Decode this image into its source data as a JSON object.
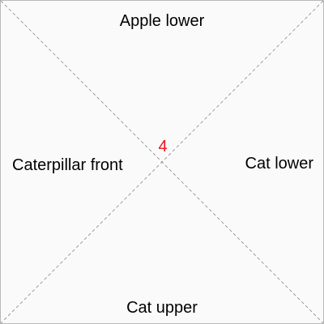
{
  "quadrants": {
    "top": "Apple lower",
    "left": "Caterpillar front",
    "right": "Cat lower",
    "bottom": "Cat upper"
  },
  "center_number": "4",
  "colors": {
    "center_number": "#e8141c",
    "diagonal": "#888888",
    "background": "#fafafa",
    "border": "#b8b8b8"
  }
}
